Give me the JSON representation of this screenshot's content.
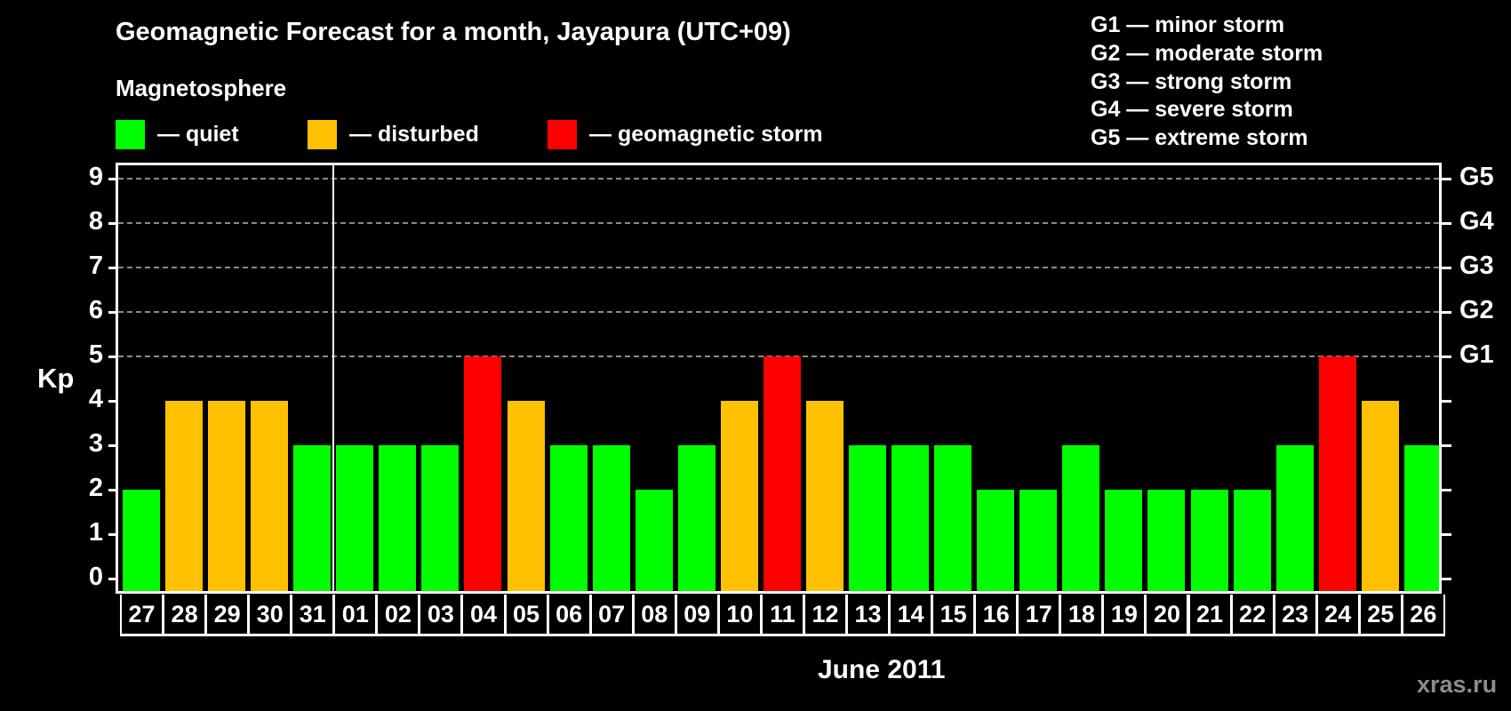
{
  "header": {
    "title": "Geomagnetic Forecast for a month, Jayapura (UTC+09)",
    "subtitle": "Magnetosphere"
  },
  "legend": [
    {
      "label": "— quiet",
      "color": "#00ff00"
    },
    {
      "label": "— disturbed",
      "color": "#ffc000"
    },
    {
      "label": "— geomagnetic storm",
      "color": "#ff0000"
    }
  ],
  "storm_scale": [
    "G1 — minor storm",
    "G2 — moderate storm",
    "G3 — strong storm",
    "G4 — severe storm",
    "G5 — extreme storm"
  ],
  "axes": {
    "ylabel": "Kp",
    "yticks": [
      "0",
      "1",
      "2",
      "3",
      "4",
      "5",
      "6",
      "7",
      "8",
      "9"
    ],
    "right_labels": [
      {
        "kp": 5,
        "label": "G1"
      },
      {
        "kp": 6,
        "label": "G2"
      },
      {
        "kp": 7,
        "label": "G3"
      },
      {
        "kp": 8,
        "label": "G4"
      },
      {
        "kp": 9,
        "label": "G5"
      }
    ],
    "xlabel": "June 2011"
  },
  "watermark": "xras.ru",
  "colors": {
    "quiet": "#00ff00",
    "disturbed": "#ffc000",
    "storm": "#ff0000",
    "background": "#000000",
    "grid": "#8a8a8a"
  },
  "chart_data": {
    "type": "bar",
    "title": "Geomagnetic Forecast for a month, Jayapura (UTC+09)",
    "subtitle": "Magnetosphere",
    "xlabel": "June 2011",
    "ylabel": "Kp",
    "ylim": [
      0,
      9
    ],
    "grid": true,
    "secondary_y_labels": {
      "5": "G1",
      "6": "G2",
      "7": "G3",
      "8": "G4",
      "9": "G5"
    },
    "legend": [
      "quiet",
      "disturbed",
      "geomagnetic storm"
    ],
    "month_divider_after": "31",
    "categories": [
      "27",
      "28",
      "29",
      "30",
      "31",
      "01",
      "02",
      "03",
      "04",
      "05",
      "06",
      "07",
      "08",
      "09",
      "10",
      "11",
      "12",
      "13",
      "14",
      "15",
      "16",
      "17",
      "18",
      "19",
      "20",
      "21",
      "22",
      "23",
      "24",
      "25",
      "26"
    ],
    "values": [
      2,
      4,
      4,
      4,
      3,
      3,
      3,
      3,
      5,
      4,
      3,
      3,
      2,
      3,
      4,
      5,
      4,
      3,
      3,
      3,
      2,
      2,
      3,
      2,
      2,
      2,
      2,
      3,
      5,
      4,
      3
    ],
    "status": [
      "quiet",
      "disturbed",
      "disturbed",
      "disturbed",
      "quiet",
      "quiet",
      "quiet",
      "quiet",
      "storm",
      "disturbed",
      "quiet",
      "quiet",
      "quiet",
      "quiet",
      "disturbed",
      "storm",
      "disturbed",
      "quiet",
      "quiet",
      "quiet",
      "quiet",
      "quiet",
      "quiet",
      "quiet",
      "quiet",
      "quiet",
      "quiet",
      "quiet",
      "storm",
      "disturbed",
      "quiet"
    ]
  }
}
